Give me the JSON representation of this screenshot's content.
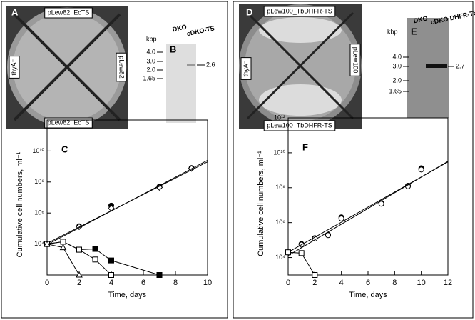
{
  "photos": [
    {
      "label": "A",
      "top": "pLew82_EcTS",
      "left": "thyA⁻",
      "right": "pLew82",
      "bottom": "pLew82_EcTS"
    },
    {
      "label": "D",
      "top": "pLew100_TbDHFR-TS",
      "left": "thyA⁻",
      "right": "pLew100",
      "bottom": "pLew100_TbDHFR-TS"
    }
  ],
  "blots": [
    {
      "label": "B",
      "lanes": [
        "DKO",
        "cDKO-TS"
      ],
      "unit": "kbp",
      "markers": [
        "4.0",
        "3.0",
        "2.0",
        "1.65"
      ],
      "band": "2.6"
    },
    {
      "label": "E",
      "lanes": [
        "DKO",
        "cDKO DHFR-TS"
      ],
      "unit": "kbp",
      "markers": [
        "4.0",
        "3.0",
        "2.0",
        "1.65"
      ],
      "band": "2.7"
    }
  ],
  "chart_data": [
    {
      "type": "line",
      "label": "C",
      "xlabel": "Time, days",
      "ylabel": "Cumulative cell numbers, ml⁻¹",
      "xlim": [
        0,
        10
      ],
      "xticks": [
        0,
        2,
        4,
        6,
        8,
        10
      ],
      "ylim": [
        100,
        1000000000000
      ],
      "log_y": true,
      "yticks": [
        {
          "value": 10000,
          "label": "10⁴"
        },
        {
          "value": 1000000,
          "label": "10⁶"
        },
        {
          "value": 100000000,
          "label": "10⁸"
        },
        {
          "value": 10000000000,
          "label": "10¹⁰"
        }
      ],
      "series": [
        {
          "marker": "circle-filled",
          "connect": false,
          "x": [
            0,
            2,
            4,
            7,
            9
          ],
          "values": [
            10000,
            140000,
            3000000,
            50000000,
            800000000
          ]
        },
        {
          "marker": "diamond-open",
          "connect": false,
          "x": [
            0,
            2,
            4,
            7,
            9
          ],
          "values": [
            10000,
            130000,
            2000000,
            45000000,
            750000000
          ]
        },
        {
          "marker": "none",
          "connect": true,
          "x": [
            0,
            10
          ],
          "values": [
            9000,
            2500000000
          ]
        },
        {
          "marker": "none",
          "connect": true,
          "x": [
            0,
            10
          ],
          "values": [
            11000,
            2000000000
          ]
        },
        {
          "marker": "square-filled",
          "connect": true,
          "x": [
            0,
            1,
            2,
            3,
            4,
            7
          ],
          "values": [
            10000,
            14000,
            4300,
            4800,
            870,
            100
          ]
        },
        {
          "marker": "square-open",
          "connect": true,
          "x": [
            0,
            1,
            2,
            3,
            4
          ],
          "values": [
            10000,
            14000,
            4300,
            1000,
            100
          ]
        },
        {
          "marker": "triangle-open",
          "connect": true,
          "x": [
            0,
            1,
            2
          ],
          "values": [
            10000,
            5900,
            100
          ]
        }
      ]
    },
    {
      "type": "line",
      "label": "F",
      "xlabel": "Time, days",
      "ylabel": "Cumulative cell numbers, ml⁻¹",
      "xlim": [
        0,
        12
      ],
      "xticks": [
        0,
        2,
        4,
        6,
        8,
        10,
        12
      ],
      "ylim": [
        1000,
        1000000000000
      ],
      "log_y": true,
      "yticks": [
        {
          "value": 10000,
          "label": "10⁴"
        },
        {
          "value": 1000000,
          "label": "10⁶"
        },
        {
          "value": 100000000,
          "label": "10⁸"
        },
        {
          "value": 10000000000,
          "label": "10¹⁰"
        },
        {
          "value": 1000000000000,
          "label": "10¹²"
        }
      ],
      "series": [
        {
          "marker": "circle-filled",
          "connect": false,
          "x": [
            0,
            1,
            2,
            3,
            4,
            7,
            9,
            10
          ],
          "values": [
            20000,
            60000,
            130000,
            200000,
            2000000,
            13000000,
            130000000,
            1300000000
          ]
        },
        {
          "marker": "circle-open",
          "connect": false,
          "x": [
            1,
            2,
            3,
            4,
            7,
            9,
            10
          ],
          "values": [
            55000,
            120000,
            190000,
            1700000,
            12000000,
            120000000,
            1100000000
          ]
        },
        {
          "marker": "none",
          "connect": true,
          "x": [
            0,
            12
          ],
          "values": [
            20000,
            3000000000
          ]
        },
        {
          "marker": "none",
          "connect": true,
          "x": [
            0,
            12
          ],
          "values": [
            13000,
            3200000000
          ]
        },
        {
          "marker": "square-open",
          "connect": true,
          "x": [
            0,
            1,
            2
          ],
          "values": [
            20000,
            18000,
            1000
          ]
        }
      ]
    }
  ]
}
